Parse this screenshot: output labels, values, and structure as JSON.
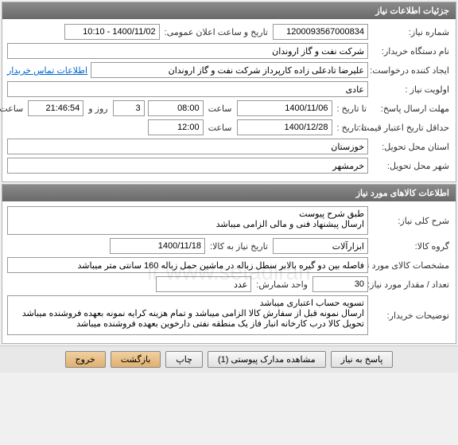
{
  "panel1": {
    "title": "جزئیات اطلاعات نیاز",
    "request_number_label": "شماره نیاز:",
    "request_number": "1200093567000834",
    "public_date_label": "تاریخ و ساعت اعلان عمومی:",
    "public_date": "1400/11/02 - 10:10",
    "org_label": "نام دستگاه خریدار:",
    "org": "شرکت نفت و گاز اروندان",
    "creator_label": "ایجاد کننده درخواست:",
    "creator": "علیرضا تادعلی زاده کارپرداز شرکت نفت و گاز اروندان",
    "contact_link": "اطلاعات تماس خریدار",
    "priority_label": "اولویت نیاز :",
    "priority": "عادی",
    "reply_deadline_label": "مهلت ارسال پاسخ:",
    "to_date_label": "تا تاریخ :",
    "reply_date": "1400/11/06",
    "time_label": "ساعت",
    "reply_time": "08:00",
    "days_remain": "3",
    "days_label": "روز و",
    "time_remain": "21:46:54",
    "remain_label": "ساعت باقی مانده",
    "min_valid_label": "حداقل تاریخ اعتبار قیمت:",
    "min_valid_date": "1400/12/28",
    "min_valid_time": "12:00",
    "province_label": "استان محل تحویل:",
    "province": "خوزستان",
    "city_label": "شهر محل تحویل:",
    "city": "خرمشهر"
  },
  "panel2": {
    "title": "اطلاعات کالاهای مورد نیاز",
    "general_label": "شرح کلی نیاز:",
    "general_text": "طبق شرح پیوست\nارسال پیشنهاد فنی و مالی الزامی میباشد",
    "group_label": "گروه کالا:",
    "group": "ابزارآلات",
    "need_date_label": "تاریخ نیاز به کالا:",
    "need_date": "1400/11/18",
    "spec_label": "مشخصات کالای مورد نیاز:",
    "spec": "فاصله بین دو گیره بالابر سطل زباله در ماشین حمل زباله 160 سانتی متر میباشد",
    "qty_label": "تعداد / مقدار مورد نیاز:",
    "qty": "30",
    "unit_label": "واحد شمارش:",
    "unit": "عدد",
    "buyer_notes_label": "توضیحات خریدار:",
    "buyer_notes": "تسویه حساب اعتباری میباشد\nارسال نمونه قبل از سفارش کالا الزامی میباشد و تمام هزینه کرایه نمونه بعهده فروشنده میباشد\nتحویل کالا درب کارخانه انبار فاز یک منطقه نفتی دارخوین بعهده فروشنده میباشد"
  },
  "buttons": {
    "reply": "پاسخ به نیاز",
    "attachments": "مشاهده مدارک پیوستی (1)",
    "print": "چاپ",
    "back": "بازگشت",
    "close": "خروج"
  },
  "watermark": "ir www.setadiran"
}
